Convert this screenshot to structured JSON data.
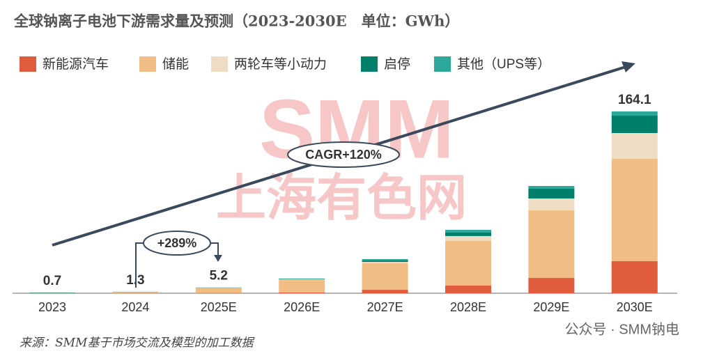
{
  "chart_data": {
    "type": "stacked_bar",
    "title": "全球钠离子电池下游需求量及预测（2023-2030E　单位：GWh）",
    "categories": [
      "2023",
      "2024",
      "2025E",
      "2026E",
      "2027E",
      "2028E",
      "2029E",
      "2030E"
    ],
    "series": [
      {
        "name": "新能源汽车",
        "color": "#e05c3c",
        "values": [
          0,
          0,
          0.2,
          0.6,
          3.1,
          6.9,
          13.8,
          28.9
        ]
      },
      {
        "name": "储能",
        "color": "#f0bd85",
        "values": [
          0.2,
          0.8,
          4.5,
          11.6,
          23.9,
          40.3,
          61.0,
          92.4
        ]
      },
      {
        "name": "两轮车等小动力",
        "color": "#efdcc4",
        "values": [
          0,
          0.1,
          0.2,
          0.4,
          1.3,
          4.4,
          10.7,
          23.3
        ]
      },
      {
        "name": "启停",
        "color": "#00806b",
        "values": [
          0.2,
          0.1,
          0.2,
          0.3,
          1.3,
          3.1,
          8.8,
          15.7
        ]
      },
      {
        "name": "其他（UPS等）",
        "color": "#2ba89a",
        "values": [
          0.3,
          0.3,
          0.1,
          0.3,
          1.2,
          2.5,
          2.5,
          3.8
        ]
      }
    ],
    "totals": [
      0.7,
      1.3,
      5.2,
      null,
      null,
      null,
      null,
      164.1
    ],
    "ylim": [
      0,
      170
    ],
    "annotations": [
      "CAGR+120%",
      "+289%"
    ],
    "source": "来源：SMM基于市场交流及模型的加工数据",
    "watermark": [
      "SMM",
      "上海有色网"
    ],
    "credit": "公众号 · SMM钠电"
  }
}
